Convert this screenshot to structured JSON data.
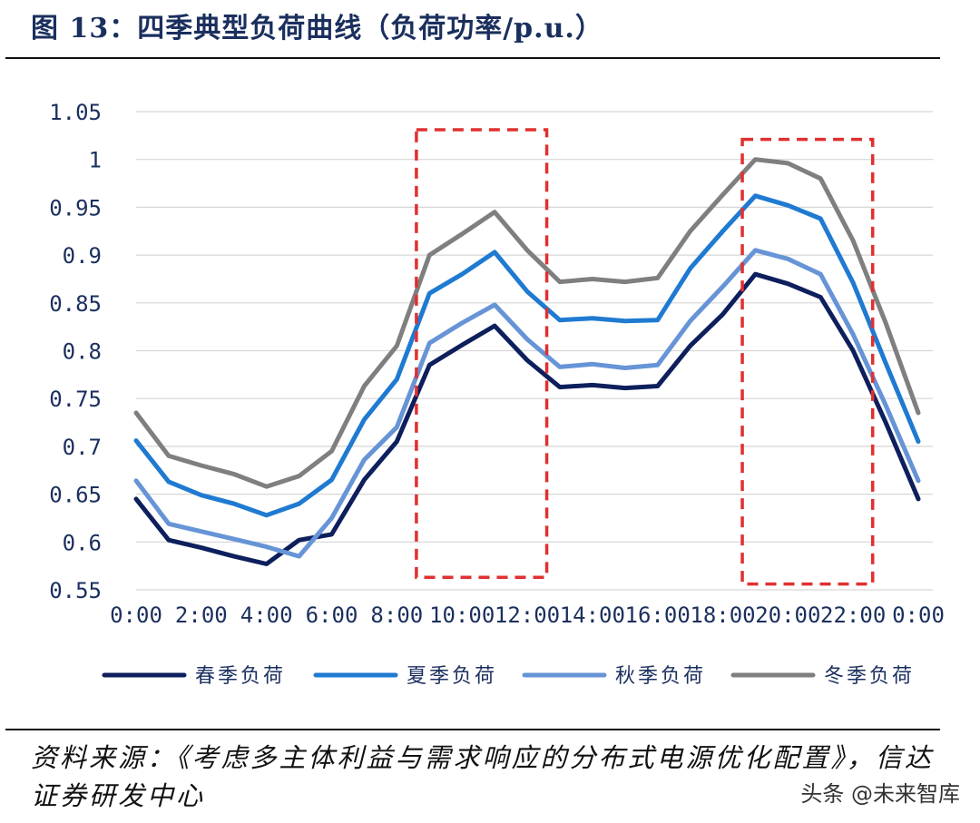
{
  "title": "图 13：四季典型负荷曲线（负荷功率/p.u.）",
  "source": "资料来源：《考虑多主体利益与需求响应的分布式电源优化配置》，信达证券研发中心",
  "watermark": "头条 @未来智库",
  "colors": {
    "spring": "#0d1f5c",
    "summer": "#1f7ad1",
    "autumn": "#6694d6",
    "winter": "#7f7f7f",
    "highlight": "#e03030",
    "axis": "#1b2f5e"
  },
  "chart_data": {
    "type": "line",
    "x": [
      "0:00",
      "1:00",
      "2:00",
      "3:00",
      "4:00",
      "5:00",
      "6:00",
      "7:00",
      "8:00",
      "9:00",
      "10:00",
      "11:00",
      "12:00",
      "13:00",
      "14:00",
      "15:00",
      "16:00",
      "17:00",
      "18:00",
      "19:00",
      "20:00",
      "21:00",
      "22:00",
      "23:00",
      "0:00"
    ],
    "x_tick_labels": [
      "0:00",
      "2:00",
      "4:00",
      "6:00",
      "8:00",
      "10:00",
      "12:00",
      "14:00",
      "16:00",
      "18:00",
      "20:00",
      "22:00",
      "0:00"
    ],
    "y_tick_labels": [
      "1.05",
      "1",
      "0.95",
      "0.9",
      "0.85",
      "0.8",
      "0.75",
      "0.7",
      "0.65",
      "0.6",
      "0.55"
    ],
    "ylim": [
      0.55,
      1.05
    ],
    "series": [
      {
        "name": "春季负荷",
        "color": "#0d1f5c",
        "values": [
          0.645,
          0.602,
          0.594,
          0.585,
          0.577,
          0.602,
          0.608,
          0.665,
          0.705,
          0.785,
          0.806,
          0.826,
          0.79,
          0.762,
          0.764,
          0.761,
          0.763,
          0.805,
          0.838,
          0.88,
          0.87,
          0.856,
          0.8,
          0.725,
          0.645
        ]
      },
      {
        "name": "夏季负荷",
        "color": "#1f7ad1",
        "values": [
          0.706,
          0.663,
          0.649,
          0.64,
          0.628,
          0.64,
          0.665,
          0.728,
          0.77,
          0.86,
          0.88,
          0.903,
          0.862,
          0.832,
          0.834,
          0.831,
          0.832,
          0.886,
          0.925,
          0.962,
          0.952,
          0.938,
          0.871,
          0.787,
          0.705
        ]
      },
      {
        "name": "秋季负荷",
        "color": "#6694d6",
        "values": [
          0.664,
          0.619,
          0.611,
          0.603,
          0.595,
          0.585,
          0.625,
          0.686,
          0.72,
          0.808,
          0.829,
          0.848,
          0.812,
          0.783,
          0.786,
          0.782,
          0.785,
          0.831,
          0.867,
          0.905,
          0.896,
          0.88,
          0.817,
          0.743,
          0.664
        ]
      },
      {
        "name": "冬季负荷",
        "color": "#7f7f7f",
        "values": [
          0.735,
          0.69,
          0.68,
          0.671,
          0.658,
          0.669,
          0.695,
          0.763,
          0.805,
          0.9,
          0.922,
          0.945,
          0.905,
          0.872,
          0.875,
          0.872,
          0.876,
          0.925,
          0.963,
          1.0,
          0.996,
          0.98,
          0.915,
          0.829,
          0.735
        ]
      }
    ],
    "highlight_ranges": [
      {
        "x_start": 8.6,
        "x_end": 12.6,
        "y_start": 0.563,
        "y_end": 1.031
      },
      {
        "x_start": 18.6,
        "x_end": 22.6,
        "y_start": 0.556,
        "y_end": 1.021
      }
    ],
    "grid": "horizontal",
    "legend": "bottom"
  }
}
